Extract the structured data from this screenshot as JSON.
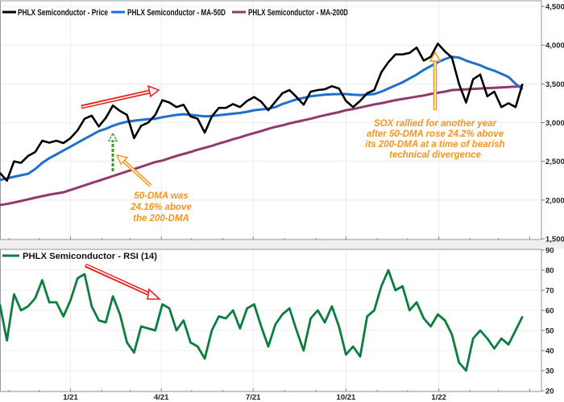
{
  "chart_data": [
    {
      "type": "line",
      "panel": "price",
      "legend_placement": "top-left",
      "grid": true,
      "y_axis_side": "right",
      "ylim": [
        1500,
        4500
      ],
      "yticks": [
        "1,500",
        "2,000",
        "2,500",
        "3,000",
        "3,500",
        "4,000",
        "4,500"
      ],
      "ytick_values": [
        1500,
        2000,
        2500,
        3000,
        3500,
        4000,
        4500
      ],
      "x": [
        "2020-10-23",
        "2020-10-30",
        "2020-11-06",
        "2020-11-13",
        "2020-11-20",
        "2020-11-27",
        "2020-12-04",
        "2020-12-11",
        "2020-12-18",
        "2020-12-25",
        "2021-01-01",
        "2021-01-08",
        "2021-01-15",
        "2021-01-22",
        "2021-01-29",
        "2021-02-05",
        "2021-02-12",
        "2021-02-19",
        "2021-02-26",
        "2021-03-05",
        "2021-03-12",
        "2021-03-19",
        "2021-03-26",
        "2021-04-02",
        "2021-04-09",
        "2021-04-16",
        "2021-04-23",
        "2021-04-30",
        "2021-05-07",
        "2021-05-14",
        "2021-05-21",
        "2021-05-28",
        "2021-06-04",
        "2021-06-11",
        "2021-06-18",
        "2021-06-25",
        "2021-07-02",
        "2021-07-09",
        "2021-07-16",
        "2021-07-23",
        "2021-07-30",
        "2021-08-06",
        "2021-08-13",
        "2021-08-20",
        "2021-08-27",
        "2021-09-03",
        "2021-09-10",
        "2021-09-17",
        "2021-09-24",
        "2021-10-01",
        "2021-10-08",
        "2021-10-15",
        "2021-10-22",
        "2021-10-29",
        "2021-11-05",
        "2021-11-12",
        "2021-11-19",
        "2021-11-26",
        "2021-12-03",
        "2021-12-10",
        "2021-12-17",
        "2021-12-24",
        "2021-12-31",
        "2022-01-07",
        "2022-01-14",
        "2022-01-21",
        "2022-01-28",
        "2022-02-04",
        "2022-02-11",
        "2022-02-18",
        "2022-02-25",
        "2022-03-04",
        "2022-03-11",
        "2022-03-18",
        "2022-03-25"
      ],
      "series": [
        {
          "name": "PHLX Semiconductor - Price",
          "color": "#000000",
          "values": [
            2351,
            2250,
            2500,
            2480,
            2570,
            2620,
            2766,
            2740,
            2766,
            2735,
            2800,
            2900,
            3050,
            3090,
            2950,
            3060,
            3220,
            3150,
            3100,
            2800,
            2960,
            3000,
            3099,
            3290,
            3260,
            3200,
            3230,
            3080,
            3050,
            2870,
            3080,
            3190,
            3190,
            3240,
            3200,
            3280,
            3330,
            3270,
            3160,
            3270,
            3380,
            3420,
            3330,
            3230,
            3400,
            3420,
            3430,
            3470,
            3440,
            3280,
            3200,
            3280,
            3380,
            3420,
            3650,
            3780,
            3880,
            3880,
            3900,
            3970,
            3800,
            3850,
            4020,
            3920,
            3840,
            3500,
            3260,
            3560,
            3620,
            3340,
            3400,
            3200,
            3250,
            3200,
            3500
          ]
        },
        {
          "name": "PHLX Semiconductor - MA-50D",
          "color": "#1f6fd1",
          "values": [
            2260,
            2280,
            2300,
            2320,
            2340,
            2400,
            2480,
            2540,
            2590,
            2640,
            2690,
            2740,
            2790,
            2840,
            2890,
            2920,
            2960,
            2990,
            3010,
            3025,
            3035,
            3045,
            3050,
            3070,
            3085,
            3100,
            3108,
            3100,
            3090,
            3080,
            3085,
            3095,
            3105,
            3115,
            3125,
            3140,
            3160,
            3170,
            3180,
            3200,
            3240,
            3270,
            3300,
            3320,
            3340,
            3350,
            3360,
            3365,
            3368,
            3368,
            3360,
            3355,
            3360,
            3370,
            3400,
            3440,
            3480,
            3520,
            3570,
            3620,
            3680,
            3730,
            3780,
            3820,
            3850,
            3840,
            3800,
            3770,
            3740,
            3700,
            3670,
            3630,
            3590,
            3500,
            3430
          ]
        },
        {
          "name": "PHLX Semiconductor - MA-200D",
          "color": "#93386a",
          "values": [
            1936,
            1950,
            1968,
            1988,
            2010,
            2030,
            2050,
            2070,
            2085,
            2100,
            2130,
            2160,
            2190,
            2220,
            2250,
            2280,
            2310,
            2340,
            2370,
            2400,
            2430,
            2460,
            2490,
            2510,
            2540,
            2570,
            2595,
            2620,
            2650,
            2675,
            2700,
            2730,
            2755,
            2785,
            2810,
            2840,
            2865,
            2890,
            2920,
            2945,
            2965,
            2990,
            3010,
            3030,
            3050,
            3075,
            3095,
            3115,
            3135,
            3160,
            3175,
            3195,
            3215,
            3235,
            3250,
            3270,
            3290,
            3305,
            3320,
            3335,
            3350,
            3370,
            3385,
            3400,
            3420,
            3425,
            3430,
            3435,
            3440,
            3445,
            3450,
            3455,
            3460,
            3465,
            3472
          ]
        }
      ],
      "annotations": [
        {
          "lines": [
            "50-DMA was",
            "24.16% above",
            "the 200-DMA"
          ],
          "color": "#f7941d"
        },
        {
          "lines": [
            "SOX rallied for another year",
            "after 50-DMA rose 24.2% above",
            "its 200-DMA at a time of bearish",
            "technical divergence"
          ],
          "color": "#f7941d"
        }
      ]
    },
    {
      "type": "line",
      "panel": "rsi",
      "legend_placement": "top-left",
      "grid": true,
      "y_axis_side": "right",
      "ylim": [
        20,
        90
      ],
      "yticks": [
        "20",
        "30",
        "40",
        "50",
        "60",
        "70",
        "80",
        "90"
      ],
      "ytick_values": [
        20,
        30,
        40,
        50,
        60,
        70,
        80,
        90
      ],
      "xticks": [
        "1/21",
        "4/21",
        "7/21",
        "10/21",
        "1/22"
      ],
      "xtick_values": [
        "2021-01-01",
        "2021-04-01",
        "2021-07-01",
        "2021-10-01",
        "2022-01-01"
      ],
      "series": [
        {
          "name": "PHLX Semiconductor - RSI (14)",
          "color": "#0b7d3e",
          "values": [
            63,
            45,
            68,
            60,
            62,
            66,
            75,
            64,
            64,
            57,
            65,
            76,
            78,
            62,
            55,
            54,
            67,
            58,
            44,
            39,
            52,
            51,
            50,
            63,
            61,
            50,
            55,
            44,
            42,
            36,
            50,
            57,
            56,
            60,
            51,
            61,
            63,
            52,
            42,
            53,
            58,
            61,
            50,
            40,
            56,
            60,
            54,
            62,
            52,
            38,
            42,
            37,
            57,
            60,
            72,
            80,
            70,
            72,
            60,
            64,
            56,
            52,
            58,
            55,
            48,
            34,
            30,
            46,
            50,
            46,
            41,
            46,
            43,
            50,
            57
          ]
        }
      ]
    }
  ]
}
